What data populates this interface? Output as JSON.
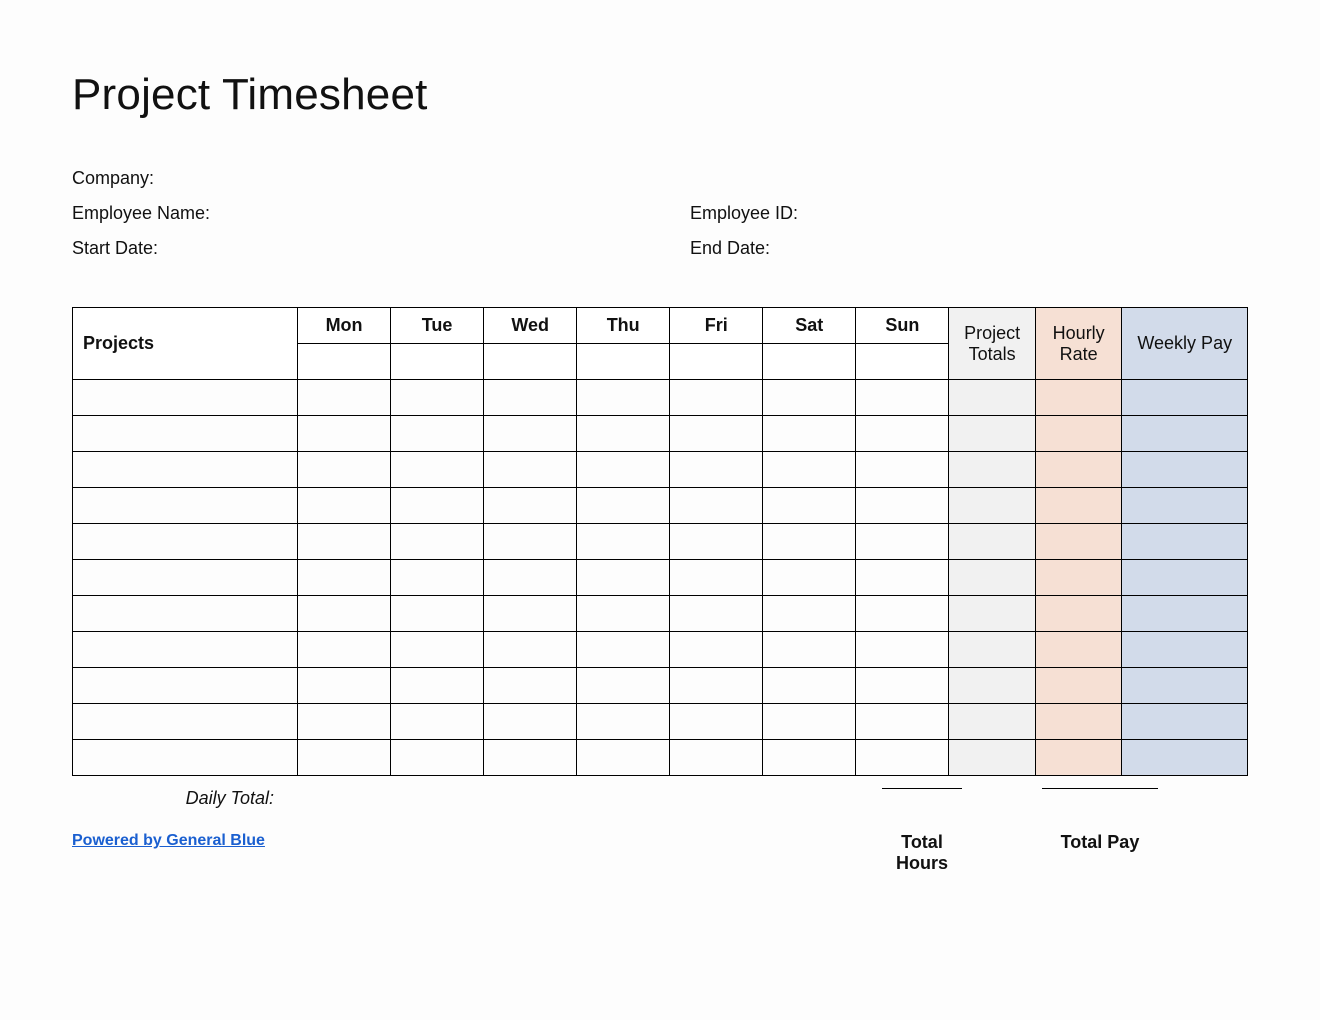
{
  "title": "Project Timesheet",
  "meta": {
    "company_label": "Company:",
    "employee_name_label": "Employee Name:",
    "employee_id_label": "Employee ID:",
    "start_date_label": "Start Date:",
    "end_date_label": "End Date:"
  },
  "table": {
    "projects_header": "Projects",
    "days": [
      "Mon",
      "Tue",
      "Wed",
      "Thu",
      "Fri",
      "Sat",
      "Sun"
    ],
    "project_totals_header": "Project Totals",
    "hourly_rate_header": "Hourly Rate",
    "weekly_pay_header": "Weekly Pay",
    "body_row_count": 11,
    "summary_colors": {
      "project_totals_bg": "#f1f1f1",
      "hourly_rate_bg": "#f6e0d4",
      "weekly_pay_bg": "#d2dbea"
    }
  },
  "footer": {
    "daily_total_label": "Daily Total:",
    "total_hours_label": "Total Hours",
    "total_pay_label": "Total Pay",
    "credit_text": "Powered by General Blue"
  }
}
